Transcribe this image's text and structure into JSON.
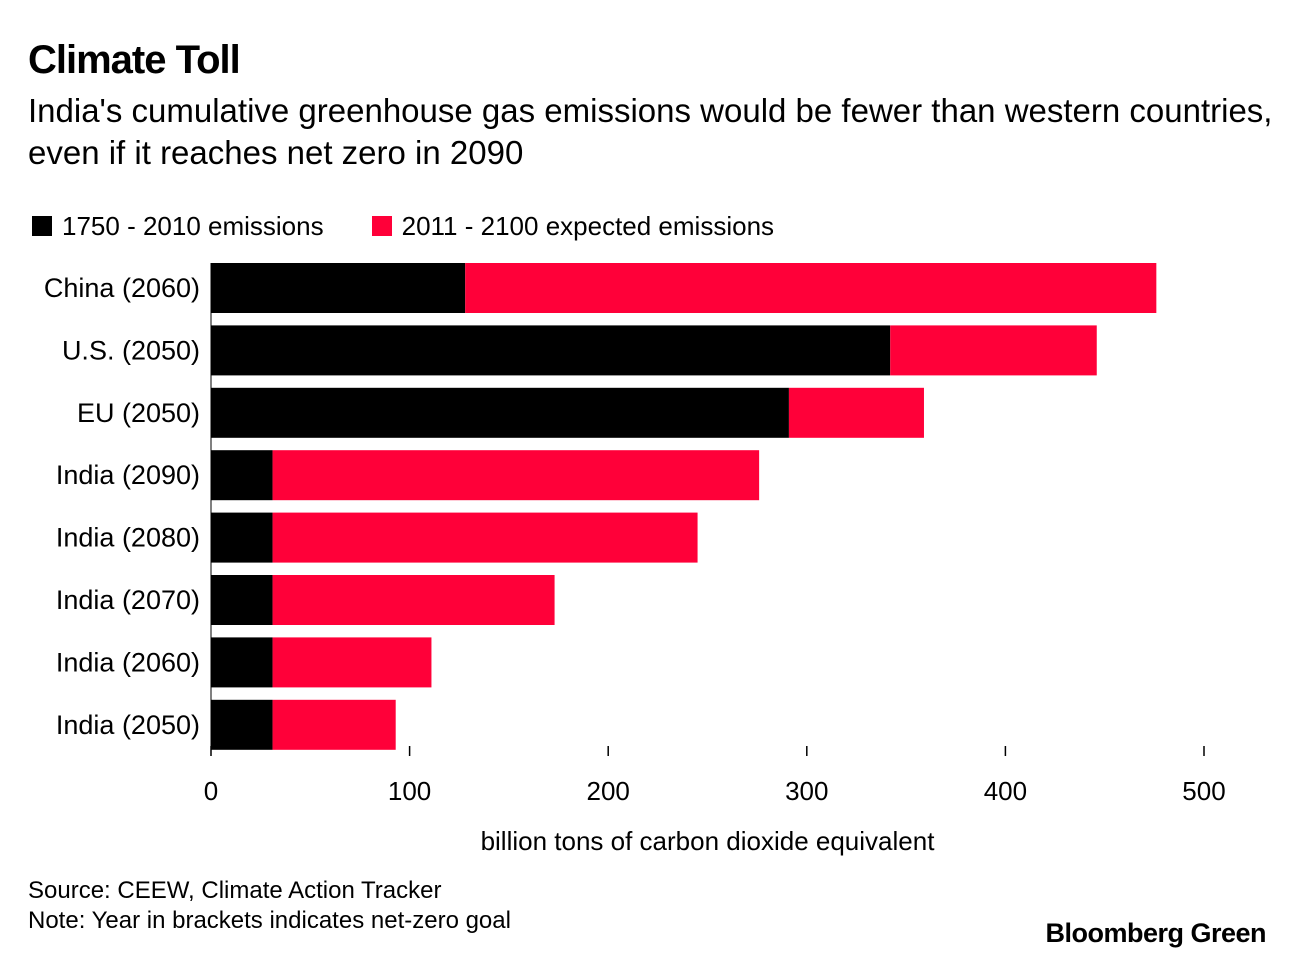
{
  "header": {
    "title": "Climate Toll",
    "subtitle": "India's cumulative greenhouse gas emissions would be fewer than western countries, even if it reaches net zero in 2090"
  },
  "footer": {
    "source": "Source: CEEW, Climate Action Tracker",
    "note": "Note: Year in brackets indicates net-zero goal",
    "brand": "Bloomberg Green"
  },
  "chart_data": {
    "type": "bar",
    "orientation": "horizontal",
    "stacked": true,
    "categories": [
      "China (2060)",
      "U.S. (2050)",
      "EU (2050)",
      "India (2090)",
      "India (2080)",
      "India (2070)",
      "India (2060)",
      "India (2050)"
    ],
    "series": [
      {
        "name": "1750 - 2010 emissions",
        "color": "#000000",
        "values": [
          128,
          342,
          291,
          31,
          31,
          31,
          31,
          31
        ]
      },
      {
        "name": "2011 - 2100 expected emissions",
        "color": "#ff0039",
        "values": [
          348,
          104,
          68,
          245,
          214,
          142,
          80,
          62
        ]
      }
    ],
    "xlabel": "billion tons of carbon dioxide equivalent",
    "xlim": [
      0,
      500
    ],
    "xticks": [
      "0",
      "100",
      "200",
      "300",
      "400",
      "500"
    ],
    "grid": false,
    "legend_position": "top-left"
  }
}
